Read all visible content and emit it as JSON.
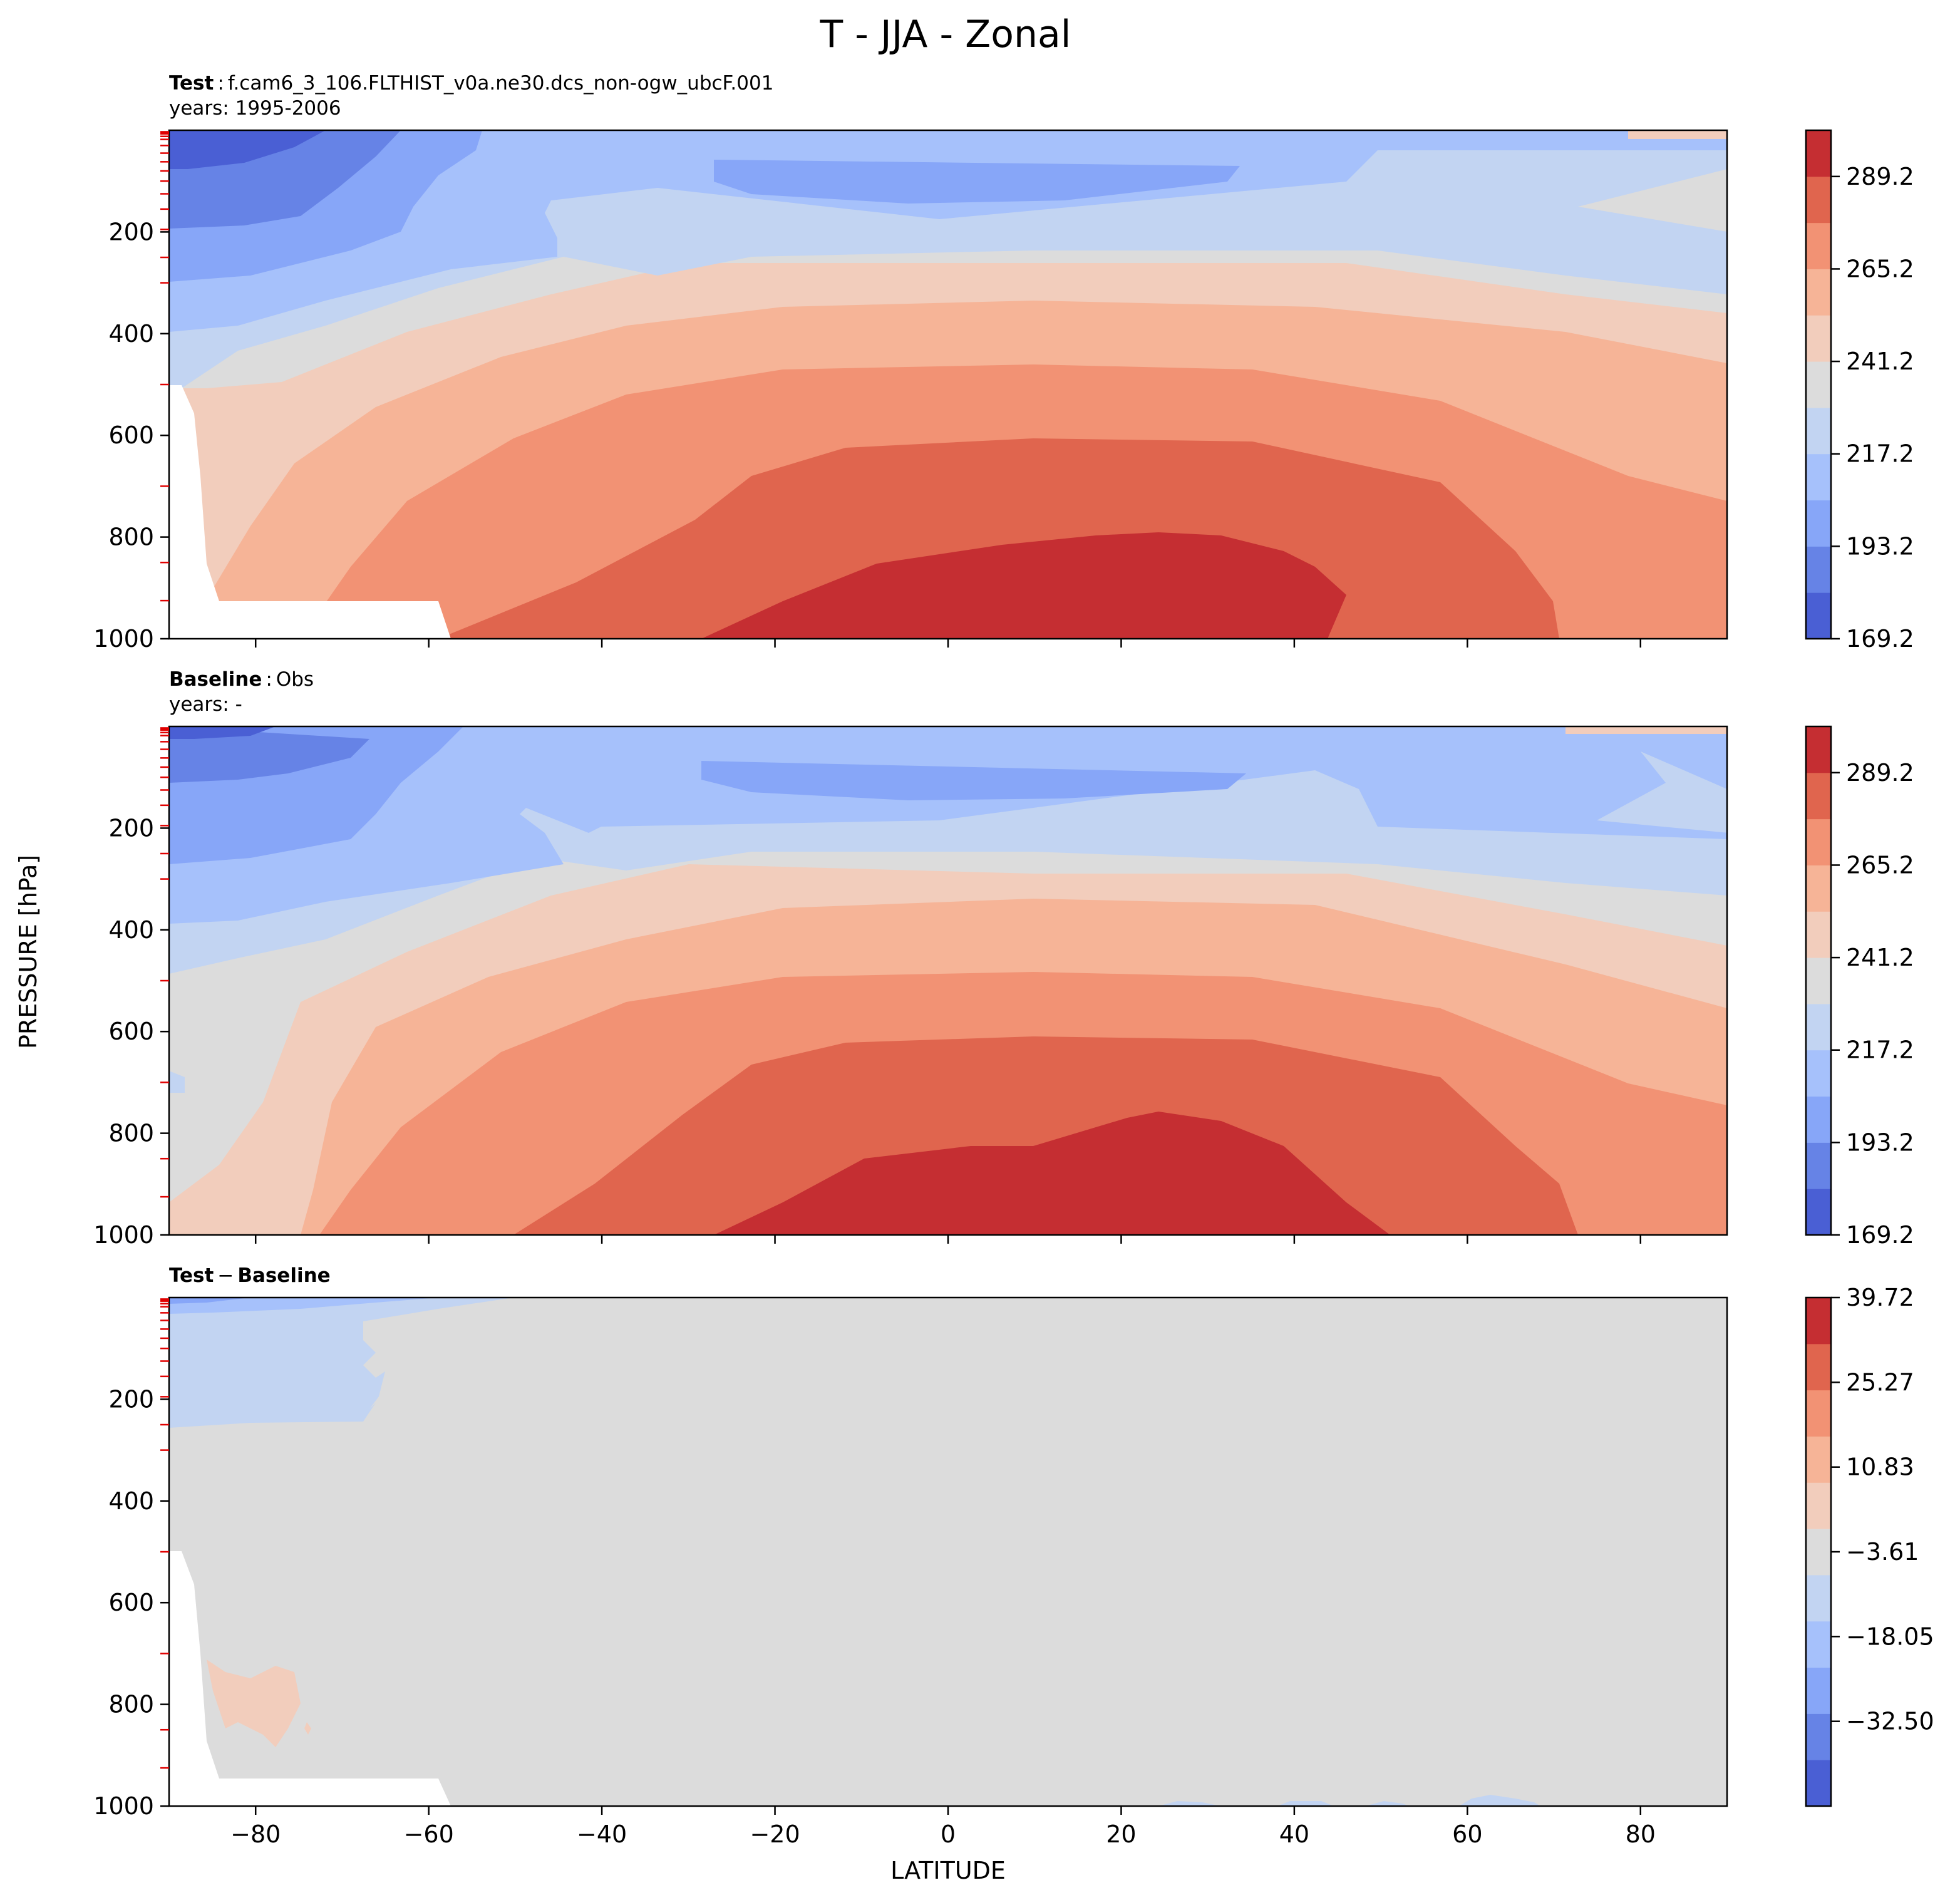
{
  "figure": {
    "title": "T - JJA - Zonal"
  },
  "colors": {
    "levels": [
      "#4a5fd4",
      "#6683e6",
      "#87a6f8",
      "#a6c1fb",
      "#c2d4f2",
      "#dcdcdc",
      "#f2cdbc",
      "#f6b497",
      "#f29274",
      "#e0654e",
      "#c52e32"
    ]
  },
  "chart_data": [
    {
      "type": "contourf",
      "panel": "test",
      "label_bold": "Test",
      "label_sep": ":",
      "label_text": "f.cam6_3_106.FLTHIST_v0a.ne30.dcs_non-ogw_ubcF.001",
      "years": "years: 1995-2006",
      "ylabel": "PRESSURE [hPa]",
      "xlim": [
        -90,
        90
      ],
      "ylim": [
        1000,
        0
      ],
      "yticks": [
        "200",
        "400",
        "600",
        "800",
        "1000"
      ],
      "yvalues": [
        200,
        400,
        600,
        800,
        1000
      ],
      "colorbar_ticks": [
        "289.2",
        "265.2",
        "241.2",
        "217.2",
        "193.2",
        "169.2"
      ],
      "colorbar_values": [
        289.2,
        265.2,
        241.2,
        217.2,
        193.2,
        169.2
      ],
      "colorbar_range": [
        169.2,
        301.2
      ]
    },
    {
      "type": "contourf",
      "panel": "baseline",
      "label_bold": "Baseline",
      "label_sep": ":",
      "label_text": "Obs",
      "years": "years: -",
      "xlim": [
        -90,
        90
      ],
      "ylim": [
        1000,
        0
      ],
      "yticks": [
        "200",
        "400",
        "600",
        "800",
        "1000"
      ],
      "yvalues": [
        200,
        400,
        600,
        800,
        1000
      ],
      "colorbar_ticks": [
        "289.2",
        "265.2",
        "241.2",
        "217.2",
        "193.2",
        "169.2"
      ],
      "colorbar_values": [
        289.2,
        265.2,
        241.2,
        217.2,
        193.2,
        169.2
      ],
      "colorbar_range": [
        169.2,
        301.2
      ]
    },
    {
      "type": "contourf",
      "panel": "difference",
      "label_bold_a": "Test",
      "label_op": "−",
      "label_bold_b": "Baseline",
      "xlabel": "LATITUDE",
      "xlim": [
        -90,
        90
      ],
      "ylim": [
        1000,
        0
      ],
      "xticks": [
        "−80",
        "−60",
        "−40",
        "−20",
        "0",
        "20",
        "40",
        "60",
        "80"
      ],
      "xvalues": [
        -80,
        -60,
        -40,
        -20,
        0,
        20,
        40,
        60,
        80
      ],
      "yticks": [
        "200",
        "400",
        "600",
        "800",
        "1000"
      ],
      "yvalues": [
        200,
        400,
        600,
        800,
        1000
      ],
      "colorbar_ticks": [
        "39.72",
        "25.27",
        "10.83",
        "−3.61",
        "−18.05",
        "−32.50"
      ],
      "colorbar_values": [
        39.72,
        25.27,
        10.83,
        -3.61,
        -18.05,
        -32.5
      ],
      "colorbar_range": [
        -46.94,
        39.72
      ]
    }
  ]
}
